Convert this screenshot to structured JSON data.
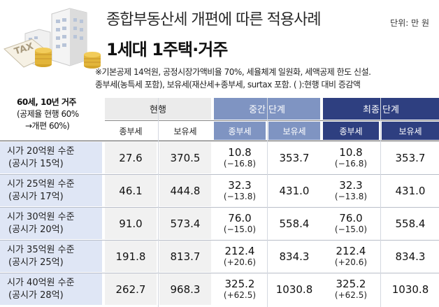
{
  "header": {
    "title": "종합부동산세 개편에 따른 적용사례",
    "unit": "단위: 만 원",
    "subtitle": "1세대 1주택·거주",
    "note_line1": "※기본공제 14억원, 공정시장가액비율 70%, 세율체계 일원화, 세액공제 한도 신설.",
    "note_line2": "종부세(농특세 포함), 보유세(재산세+종부세, surtax 포함. ( ):현행 대비 증감액",
    "illustration_text": "TAX"
  },
  "table": {
    "corner": {
      "line1": "60세, 10년 거주",
      "line2": "(공제율 현행 60%",
      "line3": "→개편 60%)"
    },
    "groups": [
      "현행",
      "중간 단계",
      "최종 단계"
    ],
    "subheaders": [
      "종부세",
      "보유세",
      "종부세",
      "보유세",
      "종부세",
      "보유세"
    ],
    "rows": [
      {
        "label1": "시가 20억원 수준",
        "label2": "(공시가 15억)",
        "cur_jb": "27.6",
        "cur_by": "370.5",
        "mid_jb": "10.8",
        "mid_jb_diff": "(−16.8)",
        "mid_by": "353.7",
        "fin_jb": "10.8",
        "fin_jb_diff": "(−16.8)",
        "fin_by": "353.7"
      },
      {
        "label1": "시가 25억원 수준",
        "label2": "(공시가 17억)",
        "cur_jb": "46.1",
        "cur_by": "444.8",
        "mid_jb": "32.3",
        "mid_jb_diff": "(−13.8)",
        "mid_by": "431.0",
        "fin_jb": "32.3",
        "fin_jb_diff": "(−13.8)",
        "fin_by": "431.0"
      },
      {
        "label1": "시가 30억원 수준",
        "label2": "(공시가 20억)",
        "cur_jb": "91.0",
        "cur_by": "573.4",
        "mid_jb": "76.0",
        "mid_jb_diff": "(−15.0)",
        "mid_by": "558.4",
        "fin_jb": "76.0",
        "fin_jb_diff": "(−15.0)",
        "fin_by": "558.4"
      },
      {
        "label1": "시가 35억원 수준",
        "label2": "(공시가 25억)",
        "cur_jb": "191.8",
        "cur_by": "813.7",
        "mid_jb": "212.4",
        "mid_jb_diff": "(+20.6)",
        "mid_by": "834.3",
        "fin_jb": "212.4",
        "fin_jb_diff": "(+20.6)",
        "fin_by": "834.3"
      },
      {
        "label1": "시가 40억원 수준",
        "label2": "(공시가 28억)",
        "cur_jb": "262.7",
        "cur_by": "968.3",
        "mid_jb": "325.2",
        "mid_jb_diff": "(+62.5)",
        "mid_by": "1030.8",
        "fin_jb": "325.2",
        "fin_jb_diff": "(+62.5)",
        "fin_by": "1030.8"
      }
    ]
  },
  "colors": {
    "mid_stage": "#7f94c2",
    "final_stage": "#2e3f80",
    "row_label_bg": "#dfe6f5"
  }
}
